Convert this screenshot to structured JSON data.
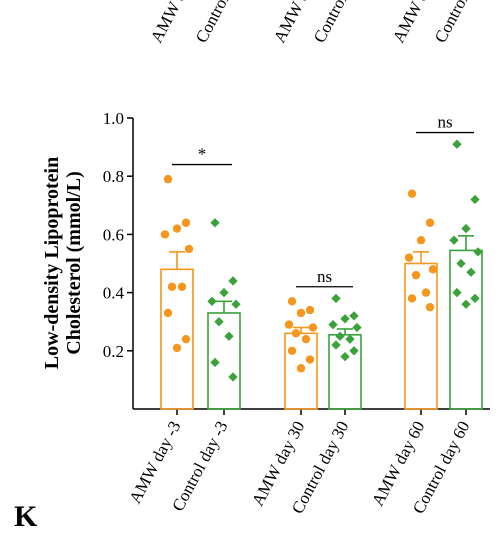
{
  "panel_letter": "K",
  "chart_data": {
    "type": "bar",
    "ylabel_line1": "Low-density Lipoprotein",
    "ylabel_line2": "Cholesterol (mmol/L)",
    "ylim": [
      0,
      1.0
    ],
    "yticks": [
      0.2,
      0.4,
      0.6,
      0.8,
      1.0
    ],
    "ytick_labels": [
      "0.2",
      "0.4",
      "0.6",
      "0.8",
      "1.0"
    ],
    "categories": [
      "AMW day -3",
      "Control day -3",
      "AMW day 30",
      "Control day 30",
      "AMW day 60",
      "Control day 60"
    ],
    "top_labels_visible": [
      "AMW d",
      "Control d",
      "AMW da",
      "Control da",
      "AMW da",
      "Control da"
    ],
    "colors": {
      "AMW": "#F5961E",
      "Control": "#3BA13B"
    },
    "series": [
      {
        "group": "AMW",
        "category": "AMW day -3",
        "mean": 0.48,
        "sem": 0.06,
        "points": [
          0.79,
          0.64,
          0.62,
          0.6,
          0.55,
          0.42,
          0.42,
          0.33,
          0.24,
          0.21
        ]
      },
      {
        "group": "Control",
        "category": "Control day -3",
        "mean": 0.33,
        "sem": 0.04,
        "points": [
          0.64,
          0.44,
          0.4,
          0.37,
          0.36,
          0.3,
          0.25,
          0.16,
          0.11
        ]
      },
      {
        "group": "AMW",
        "category": "AMW day 30",
        "mean": 0.26,
        "sem": 0.02,
        "points": [
          0.37,
          0.34,
          0.33,
          0.29,
          0.28,
          0.26,
          0.24,
          0.2,
          0.17,
          0.14
        ]
      },
      {
        "group": "Control",
        "category": "Control day 30",
        "mean": 0.255,
        "sem": 0.02,
        "points": [
          0.38,
          0.32,
          0.31,
          0.29,
          0.28,
          0.25,
          0.24,
          0.22,
          0.2,
          0.18
        ]
      },
      {
        "group": "AMW",
        "category": "AMW day 60",
        "mean": 0.5,
        "sem": 0.04,
        "points": [
          0.74,
          0.64,
          0.58,
          0.52,
          0.48,
          0.46,
          0.4,
          0.38,
          0.35
        ]
      },
      {
        "group": "Control",
        "category": "Control day 60",
        "mean": 0.545,
        "sem": 0.05,
        "points": [
          0.91,
          0.72,
          0.62,
          0.58,
          0.54,
          0.5,
          0.47,
          0.4,
          0.38,
          0.36
        ]
      }
    ],
    "annotations": [
      {
        "label": "*",
        "from": "AMW day -3",
        "to": "Control day -3",
        "y": 0.84
      },
      {
        "label": "ns",
        "from": "AMW day 30",
        "to": "Control day 30",
        "y": 0.42
      },
      {
        "label": "ns",
        "from": "AMW day 60",
        "to": "Control day 60",
        "y": 0.95
      }
    ]
  }
}
